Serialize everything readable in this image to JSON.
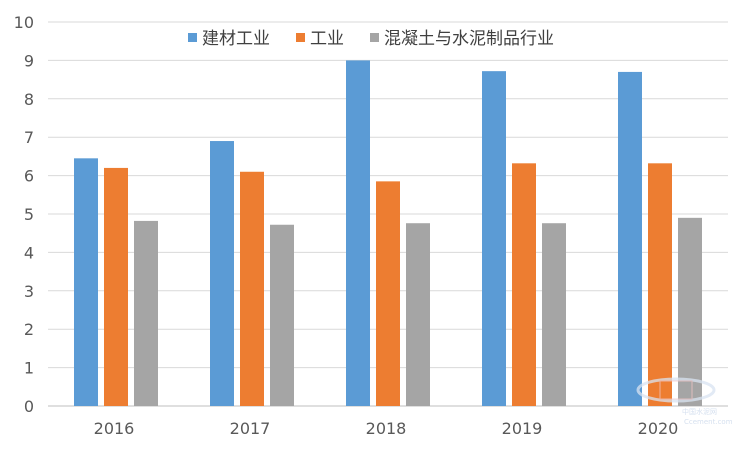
{
  "chart_data": {
    "type": "bar",
    "categories": [
      "2016",
      "2017",
      "2018",
      "2019",
      "2020"
    ],
    "series": [
      {
        "name": "建材工业",
        "values": [
          6.45,
          6.9,
          9.0,
          8.72,
          8.7
        ],
        "color": "#5B9BD5"
      },
      {
        "name": "工业",
        "values": [
          6.2,
          6.1,
          5.85,
          6.32,
          6.32
        ],
        "color": "#ED7D31"
      },
      {
        "name": "混凝土与水泥制品行业",
        "values": [
          4.82,
          4.72,
          4.76,
          4.76,
          4.9
        ],
        "color": "#A5A5A5"
      }
    ],
    "ylim": [
      0,
      10
    ],
    "yticks": [
      0,
      1,
      2,
      3,
      4,
      5,
      6,
      7,
      8,
      9,
      10
    ],
    "grid": true,
    "legend_position": "top"
  },
  "watermark": {
    "line1": "中国水泥网",
    "line2": "Ccement.com"
  }
}
